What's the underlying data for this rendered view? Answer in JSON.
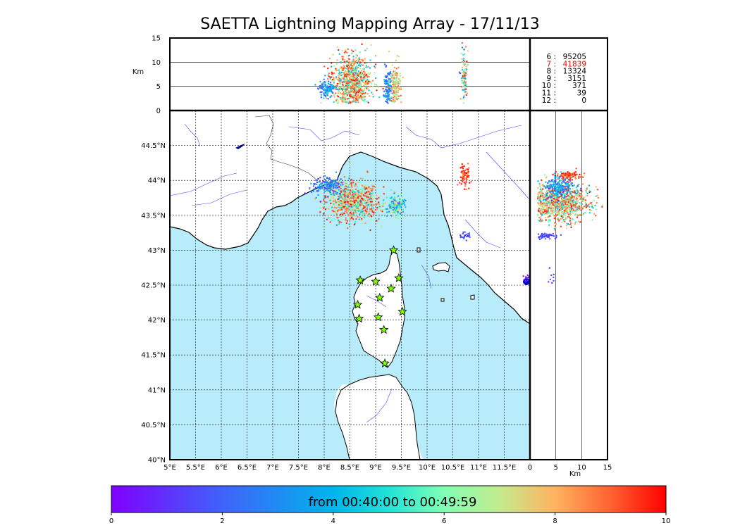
{
  "title": "SAETTA Lightning Mapping Array - 17/11/13",
  "chart_data": {
    "type": "scatter",
    "title": "SAETTA Lightning Mapping Array - 17/11/13",
    "map": {
      "xlabel": "",
      "ylabel": "",
      "xlim": [
        5.0,
        12.0
      ],
      "ylim": [
        40.0,
        45.0
      ],
      "x_ticks": [
        "5°E",
        "5.5°E",
        "6°E",
        "6.5°E",
        "7°E",
        "7.5°E",
        "8°E",
        "8.5°E",
        "9°E",
        "9.5°E",
        "10°E",
        "10.5°E",
        "11°E",
        "11.5°E"
      ],
      "y_ticks": [
        "40°N",
        "40.5°N",
        "41°N",
        "41.5°N",
        "42°N",
        "42.5°N",
        "43°N",
        "43.5°N",
        "44°N",
        "44.5°N"
      ],
      "grid": true,
      "stations": [
        [
          9.35,
          43.0
        ],
        [
          8.7,
          42.57
        ],
        [
          9.0,
          42.55
        ],
        [
          9.45,
          42.6
        ],
        [
          9.3,
          42.45
        ],
        [
          9.08,
          42.32
        ],
        [
          8.65,
          42.22
        ],
        [
          9.52,
          42.12
        ],
        [
          8.68,
          42.02
        ],
        [
          9.05,
          42.04
        ],
        [
          9.16,
          41.86
        ],
        [
          9.18,
          41.38
        ]
      ],
      "clusters": [
        {
          "lon": 8.55,
          "lat": 43.7,
          "sx": 0.25,
          "sy": 0.14,
          "n": 800,
          "c0": 3,
          "c1": 10
        },
        {
          "lon": 8.05,
          "lat": 43.92,
          "sx": 0.15,
          "sy": 0.06,
          "n": 150,
          "c0": 0,
          "c1": 4
        },
        {
          "lon": 9.4,
          "lat": 43.63,
          "sx": 0.08,
          "sy": 0.07,
          "n": 200,
          "c0": 1,
          "c1": 8
        },
        {
          "lon": 10.72,
          "lat": 44.06,
          "sx": 0.05,
          "sy": 0.08,
          "n": 80,
          "c0": 8,
          "c1": 10
        },
        {
          "lon": 10.75,
          "lat": 43.2,
          "sx": 0.05,
          "sy": 0.03,
          "n": 25,
          "c0": 1,
          "c1": 2
        },
        {
          "lon": 11.95,
          "lat": 42.58,
          "sx": 0.03,
          "sy": 0.03,
          "n": 15,
          "c0": 0,
          "c1": 1
        }
      ]
    },
    "altitude_lon": {
      "ylabel": "Km",
      "ylim": [
        0,
        15
      ],
      "y_ticks": [
        "0",
        "5",
        "10",
        "15"
      ],
      "hlines": [
        5,
        10
      ],
      "clusters": [
        {
          "lon": 8.55,
          "alt": 6.0,
          "sx": 0.18,
          "sy": 2.6,
          "n": 900,
          "c0": 3,
          "c1": 10
        },
        {
          "lon": 8.05,
          "alt": 4.6,
          "sx": 0.08,
          "sy": 0.8,
          "n": 120,
          "c0": 0,
          "c1": 5
        },
        {
          "lon": 9.25,
          "alt": 5.0,
          "sx": 0.04,
          "sy": 2.0,
          "n": 120,
          "c0": 1,
          "c1": 4
        },
        {
          "lon": 9.38,
          "alt": 5.2,
          "sx": 0.05,
          "sy": 2.2,
          "n": 150,
          "c0": 5,
          "c1": 9
        },
        {
          "lon": 10.72,
          "alt": 7.0,
          "sx": 0.03,
          "sy": 2.5,
          "n": 100,
          "c0": 1,
          "c1": 10
        }
      ]
    },
    "altitude_lat": {
      "xlabel": "Km",
      "xlim": [
        0,
        15
      ],
      "x_ticks": [
        "0",
        "5",
        "10",
        "15"
      ],
      "vlines": [
        5,
        10
      ],
      "clusters": [
        {
          "alt": 6.0,
          "lat": 43.68,
          "sx": 2.8,
          "sy": 0.14,
          "n": 900,
          "c0": 3,
          "c1": 10
        },
        {
          "alt": 5.5,
          "lat": 43.9,
          "sx": 1.5,
          "sy": 0.08,
          "n": 200,
          "c0": 0,
          "c1": 5
        },
        {
          "alt": 7.5,
          "lat": 44.07,
          "sx": 1.2,
          "sy": 0.03,
          "n": 100,
          "c0": 8,
          "c1": 10
        },
        {
          "alt": 3.0,
          "lat": 43.2,
          "sx": 1.2,
          "sy": 0.02,
          "n": 60,
          "c0": 1,
          "c1": 2
        },
        {
          "alt": 4.0,
          "lat": 42.6,
          "sx": 0.5,
          "sy": 0.08,
          "n": 8,
          "c0": 0,
          "c1": 2
        }
      ]
    },
    "counts": [
      {
        "label": "6  :",
        "value": "95205",
        "color": "#000000"
      },
      {
        "label": "7  :",
        "value": "41839",
        "color": "#ff0000"
      },
      {
        "label": "8  :",
        "value": "13324",
        "color": "#000000"
      },
      {
        "label": "9  :",
        "value": "3151",
        "color": "#000000"
      },
      {
        "label": "10  :",
        "value": "371",
        "color": "#000000"
      },
      {
        "label": "11  :",
        "value": "39",
        "color": "#000000"
      },
      {
        "label": "12  :",
        "value": "0",
        "color": "#000000"
      }
    ],
    "colorbar": {
      "label": "from 00:40:00 to 00:49:59",
      "range": [
        0,
        10
      ],
      "ticks": [
        "0",
        "2",
        "4",
        "6",
        "8",
        "10"
      ],
      "colormap": "rainbow"
    },
    "colors": {
      "sea": "#b8ecfb",
      "land": "#ffffff",
      "river": "#4a4aff"
    }
  }
}
